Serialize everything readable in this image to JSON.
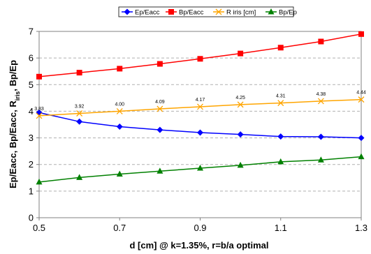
{
  "chart_data": {
    "type": "line",
    "title": "",
    "xlabel": "d [cm] @ k=1.35%, r=b/a optimal",
    "ylabel_parts": [
      "Ep/Eacc, Bp/Eacc, R",
      "iris",
      ", Bp/Ep"
    ],
    "x": [
      0.5,
      0.6,
      0.7,
      0.8,
      0.9,
      1.0,
      1.1,
      1.2,
      1.3
    ],
    "xlim": [
      0.5,
      1.3
    ],
    "ylim": [
      0,
      7
    ],
    "xticks": [
      "0.5",
      "0.7",
      "0.9",
      "1.1",
      "1.3"
    ],
    "yticks": [
      "0",
      "1",
      "2",
      "3",
      "4",
      "5",
      "6",
      "7"
    ],
    "grid": "horizontal dashed",
    "legend_position": "top",
    "series": [
      {
        "name": "Ep/Eacc",
        "color": "#0000ff",
        "marker": "diamond",
        "values": [
          3.95,
          3.61,
          3.42,
          3.3,
          3.2,
          3.13,
          3.05,
          3.04,
          3.0
        ]
      },
      {
        "name": "Bp/Eacc",
        "color": "#ff0000",
        "marker": "square",
        "values": [
          5.3,
          5.45,
          5.6,
          5.78,
          5.97,
          6.17,
          6.39,
          6.62,
          6.9
        ]
      },
      {
        "name": "R iris [cm]",
        "color": "#ffa500",
        "marker": "x",
        "values": [
          3.83,
          3.92,
          4.0,
          4.09,
          4.17,
          4.25,
          4.31,
          4.38,
          4.44
        ],
        "labels": [
          "3.83",
          "3.92",
          "4.00",
          "4.09",
          "4.17",
          "4.25",
          "4.31",
          "4.38",
          "4.44"
        ]
      },
      {
        "name": "Bp/Ep",
        "color": "#008000",
        "marker": "triangle",
        "values": [
          1.34,
          1.51,
          1.64,
          1.75,
          1.86,
          1.97,
          2.1,
          2.17,
          2.29
        ]
      }
    ]
  }
}
